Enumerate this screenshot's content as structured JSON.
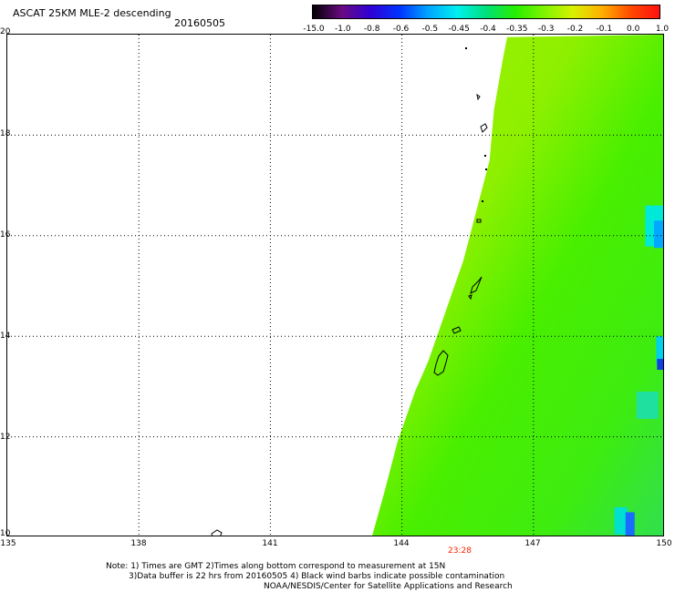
{
  "header": {
    "title": "ASCAT 25KM MLE-2 descending",
    "date": "20160505"
  },
  "colorbar": {
    "labels": [
      "-15.0",
      "-1.0",
      "-0.8",
      "-0.6",
      "-0.5",
      "-0.45",
      "-0.4",
      "-0.35",
      "-0.3",
      "-0.2",
      "-0.1",
      "0.0",
      "1.0"
    ],
    "colors": [
      "#000000",
      "#6a0a82",
      "#2f00d6",
      "#0033ff",
      "#00a6ff",
      "#00f0f0",
      "#00e07a",
      "#25ee00",
      "#7ef400",
      "#d8f200",
      "#ffb000",
      "#ff4a00",
      "#ff1010"
    ]
  },
  "axes": {
    "lat_labels": [
      "20",
      "18",
      "16",
      "14",
      "12",
      "10"
    ],
    "lon_labels": [
      "135",
      "138",
      "141",
      "144",
      "147",
      "150"
    ]
  },
  "pass_time": "23:28",
  "notes": {
    "line1": "Note: 1) Times are GMT 2)Times along bottom correspond to measurement at 15N",
    "line2": "3)Data buffer is 22 hrs from 20160505 4) Black wind barbs indicate possible contamination",
    "line3": "NOAA/NESDIS/Center for Satellite Applications and Research"
  }
}
